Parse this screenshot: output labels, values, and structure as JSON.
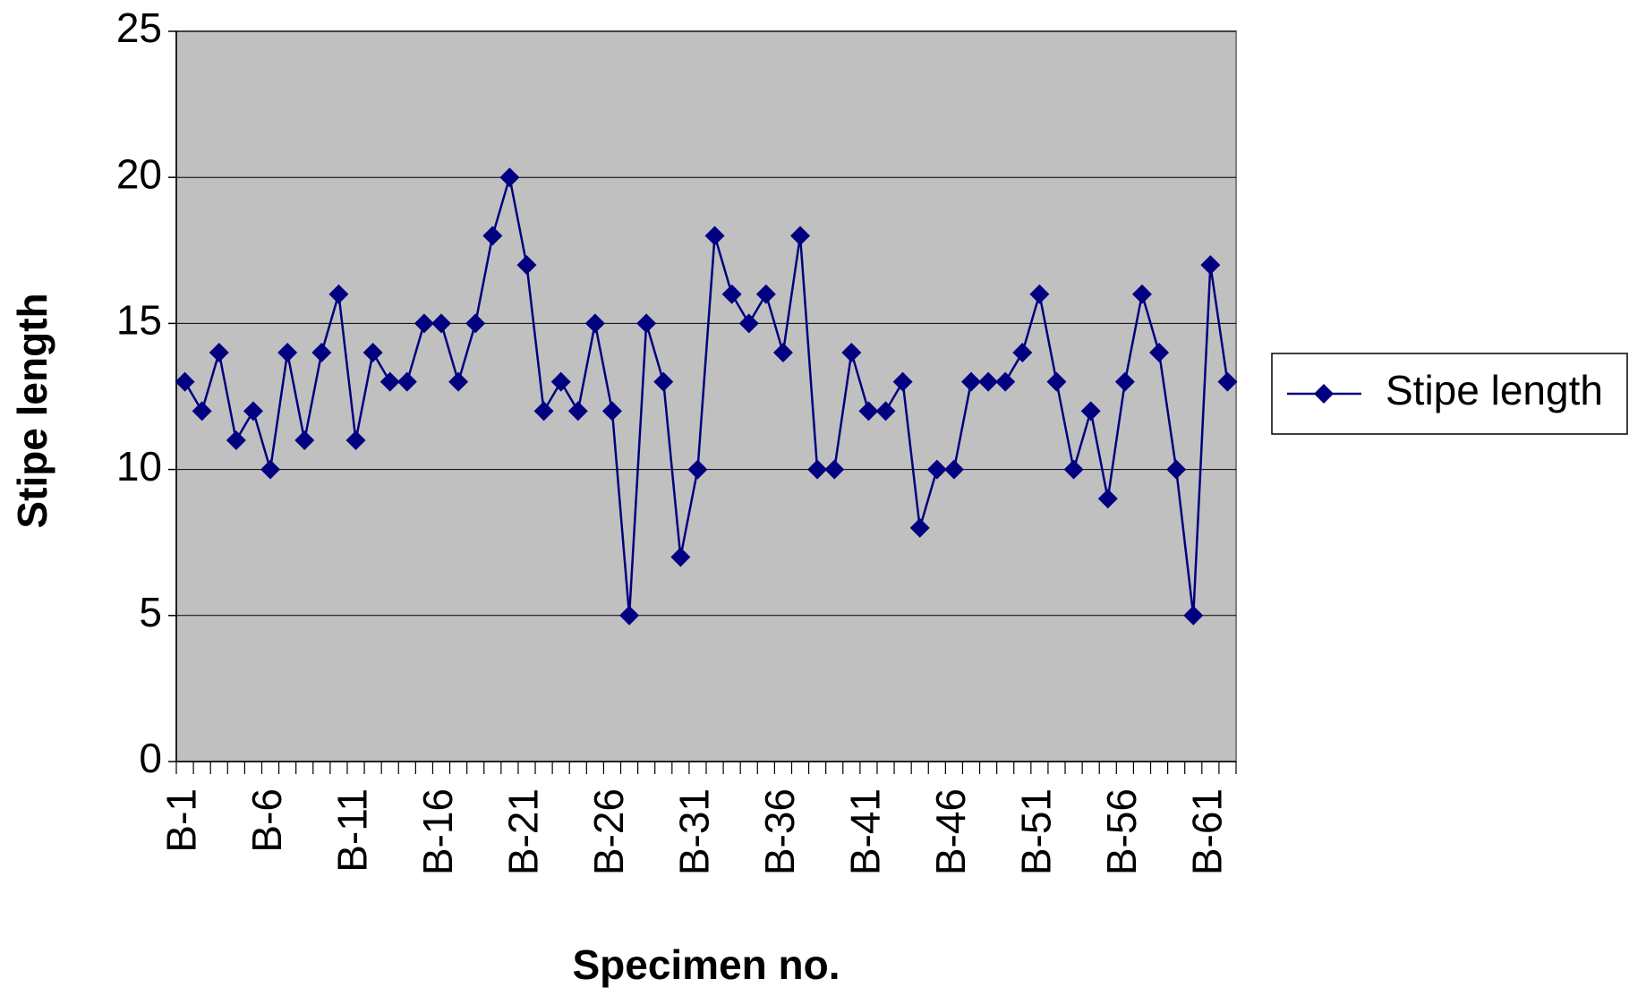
{
  "chart_data": {
    "type": "line",
    "x_label": "Specimen no.",
    "y_label": "Stipe length",
    "categories": [
      "B-1",
      null,
      null,
      null,
      null,
      "B-6",
      null,
      null,
      null,
      null,
      "B-11",
      null,
      null,
      null,
      null,
      "B-16",
      null,
      null,
      null,
      null,
      "B-21",
      null,
      null,
      null,
      null,
      "B-26",
      null,
      null,
      null,
      null,
      "B-31",
      null,
      null,
      null,
      null,
      "B-36",
      null,
      null,
      null,
      null,
      "B-41",
      null,
      null,
      null,
      null,
      "B-46",
      null,
      null,
      null,
      null,
      "B-51",
      null,
      null,
      null,
      null,
      "B-56",
      null,
      null,
      null,
      null,
      "B-61",
      null
    ],
    "series": [
      {
        "name": "Stipe length",
        "color": "#000080",
        "values": [
          13,
          12,
          14,
          11,
          12,
          10,
          14,
          11,
          14,
          16,
          11,
          14,
          13,
          13,
          15,
          15,
          13,
          15,
          18,
          20,
          17,
          12,
          13,
          12,
          15,
          12,
          5,
          15,
          13,
          7,
          10,
          18,
          16,
          15,
          16,
          14,
          18,
          10,
          10,
          14,
          12,
          12,
          13,
          8,
          10,
          10,
          13,
          13,
          13,
          14,
          16,
          13,
          10,
          12,
          9,
          13,
          16,
          14,
          10,
          5,
          17,
          13
        ]
      }
    ],
    "ylim": [
      0,
      25
    ],
    "yticks": [
      0,
      5,
      10,
      15,
      20,
      25
    ],
    "grid": true,
    "plot_background": "#c0c0c0",
    "legend": "right"
  }
}
